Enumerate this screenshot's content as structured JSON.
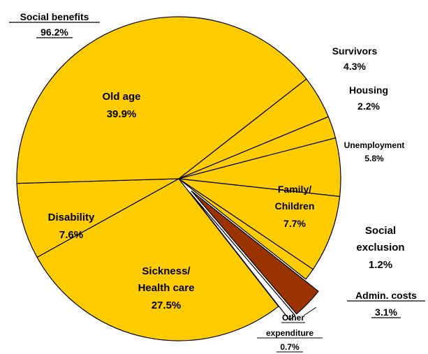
{
  "chart_data": {
    "type": "pie",
    "title": "",
    "group_label": {
      "name": "Social benefits",
      "value": "96.2%"
    },
    "slices": [
      {
        "name": "Survivors",
        "value": 4.3,
        "label": "Survivors",
        "value_label": "4.3%",
        "color": "#FFCC00",
        "exploded": false
      },
      {
        "name": "Housing",
        "value": 2.2,
        "label": "Housing",
        "value_label": "2.2%",
        "color": "#FFCC00",
        "exploded": false
      },
      {
        "name": "Unemployment",
        "value": 5.8,
        "label": "Unemployment",
        "value_label": "5.8%",
        "color": "#FFCC00",
        "exploded": false
      },
      {
        "name": "Family/ Children",
        "value": 7.7,
        "label": [
          "Family/",
          "Children"
        ],
        "value_label": "7.7%",
        "color": "#FFCC00",
        "exploded": false
      },
      {
        "name": "Social exclusion",
        "value": 1.2,
        "label": [
          "Social",
          "exclusion"
        ],
        "value_label": "1.2%",
        "color": "#FFCC00",
        "exploded": false
      },
      {
        "name": "Admin. costs",
        "value": 3.1,
        "label": "Admin. costs",
        "value_label": "3.1%",
        "color": "#993300",
        "exploded": true
      },
      {
        "name": "Other expenditure",
        "value": 0.7,
        "label": [
          "Other",
          "expenditure"
        ],
        "value_label": "0.7%",
        "color": "#FFFFFF",
        "exploded": true
      },
      {
        "name": "Sickness/ Health care",
        "value": 27.5,
        "label": [
          "Sickness/",
          "Health care"
        ],
        "value_label": "27.5%",
        "color": "#FFCC00",
        "exploded": false
      },
      {
        "name": "Disability",
        "value": 7.6,
        "label": "Disability",
        "value_label": "7.6%",
        "color": "#FFCC00",
        "exploded": false
      },
      {
        "name": "Old age",
        "value": 39.9,
        "label": "Old age",
        "value_label": "39.9%",
        "color": "#FFCC00",
        "exploded": false
      }
    ]
  }
}
